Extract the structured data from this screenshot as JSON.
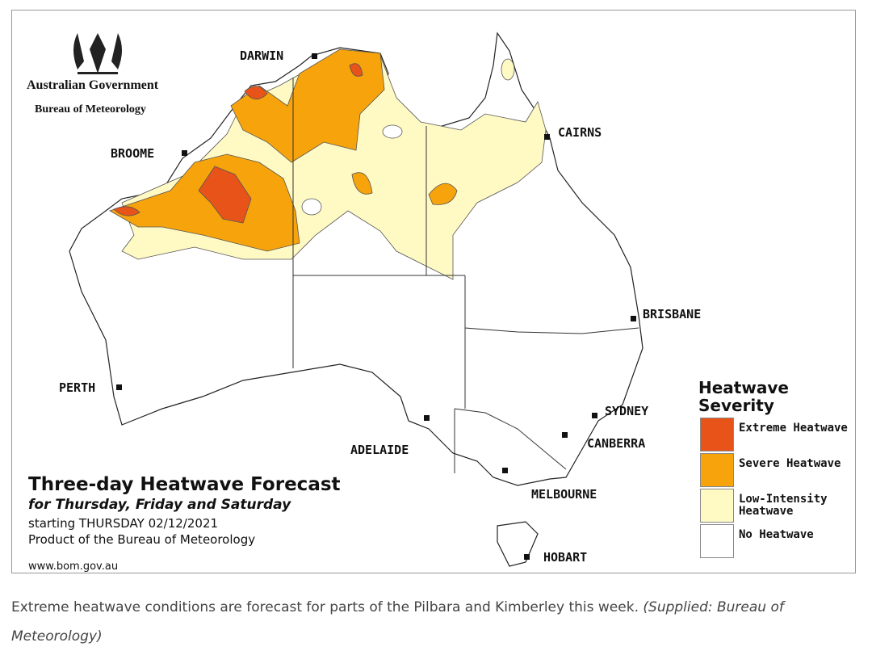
{
  "header": {
    "government": "Australian Government",
    "bureau": "Bureau of Meteorology"
  },
  "cities": [
    {
      "label": "DARWIN"
    },
    {
      "label": "BROOME"
    },
    {
      "label": "CAIRNS"
    },
    {
      "label": "BRISBANE"
    },
    {
      "label": "PERTH"
    },
    {
      "label": "SYDNEY"
    },
    {
      "label": "ADELAIDE"
    },
    {
      "label": "CANBERRA"
    },
    {
      "label": "MELBOURNE"
    },
    {
      "label": "HOBART"
    }
  ],
  "forecast": {
    "title": "Three-day Heatwave Forecast",
    "subtitle": "for Thursday, Friday and Saturday",
    "starting": "starting THURSDAY 02/12/2021",
    "product": "Product of the Bureau of Meteorology",
    "url": "www.bom.gov.au"
  },
  "legend": {
    "title": "Heatwave Severity",
    "items": [
      {
        "label": "Extreme Heatwave",
        "color": "#e8531a"
      },
      {
        "label": "Severe Heatwave",
        "color": "#f7a30c"
      },
      {
        "label": "Low-Intensity Heatwave",
        "color": "#fff9c4"
      },
      {
        "label": "No Heatwave",
        "color": "#ffffff"
      }
    ]
  },
  "caption": {
    "text": "Extreme heatwave conditions are forecast for parts of the Pilbara and Kimberley this week.",
    "credit": "(Supplied: Bureau of Meteorology)"
  }
}
